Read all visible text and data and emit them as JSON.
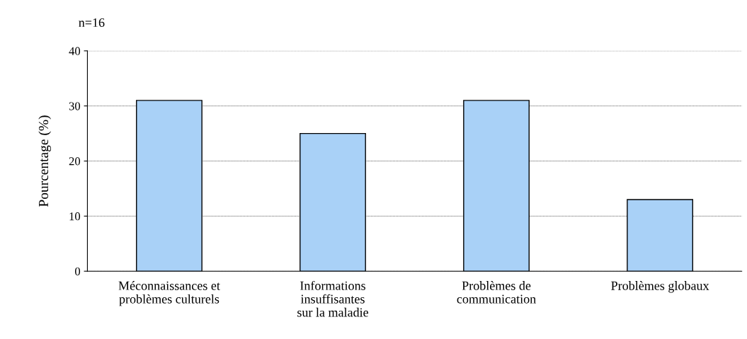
{
  "chart_data": {
    "type": "bar",
    "categories": [
      "Méconnaissances et\nproblèmes culturels",
      "Informations\ninsuffisantes\nsur la maladie",
      "Problèmes de\ncommunication",
      "Problèmes globaux"
    ],
    "values": [
      31,
      25,
      31,
      13
    ],
    "color": "#a9d1f7",
    "ylabel": "Pourcentage (%)",
    "annotations": [
      "n=16"
    ],
    "ylim": [
      0,
      40
    ],
    "yticks": [
      0,
      10,
      20,
      30,
      40
    ],
    "grid": "y",
    "legend": false
  }
}
